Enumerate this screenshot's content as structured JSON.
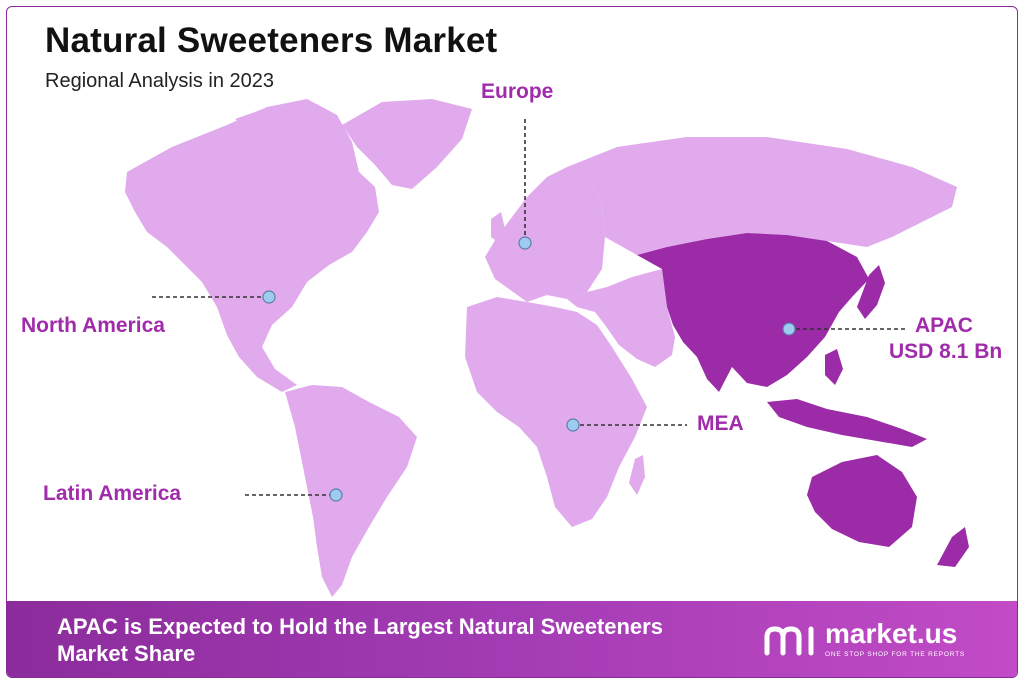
{
  "header": {
    "title": "Natural Sweeteners Market",
    "subtitle": "Regional Analysis in 2023"
  },
  "regions": [
    {
      "id": "europe",
      "label": "Europe",
      "value": "",
      "highlighted": false
    },
    {
      "id": "north-america",
      "label": "North America",
      "value": "",
      "highlighted": false
    },
    {
      "id": "apac",
      "label": "APAC",
      "value": "USD 8.1 Bn",
      "highlighted": true
    },
    {
      "id": "mea",
      "label": "MEA",
      "value": "",
      "highlighted": false
    },
    {
      "id": "latin-america",
      "label": "Latin America",
      "value": "",
      "highlighted": false
    }
  ],
  "colors": {
    "land": "#e0aaec",
    "land_highlight": "#9b2ba6",
    "label": "#a02cab",
    "marker": "#9ecbf0",
    "footer_start": "#8c2c9c",
    "footer_end": "#c24bc7"
  },
  "footer": {
    "headline": "APAC is Expected to Hold the Largest Natural Sweeteners Market Share",
    "brand_name": "market.us",
    "brand_tagline": "ONE STOP SHOP FOR THE REPORTS"
  }
}
